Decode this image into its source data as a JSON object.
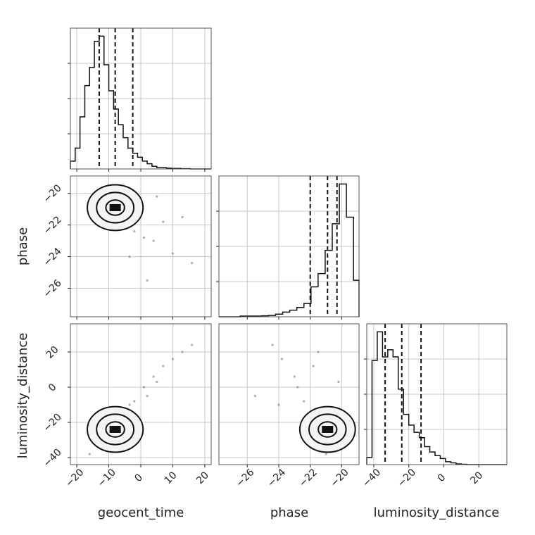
{
  "chart_data": {
    "type": "corner",
    "parameters": [
      {
        "name": "geocent_time",
        "xlim": [
          -22,
          22
        ],
        "ticks": [
          -20,
          -10,
          0,
          10,
          20
        ],
        "quantiles": [
          -13,
          -8,
          -2.5
        ],
        "histogram": {
          "bin_start": -22,
          "bin_width": 1.5,
          "counts": [
            0.3,
            0.8,
            2.0,
            3.2,
            3.9,
            4.9,
            5.1,
            4.0,
            3.0,
            2.3,
            1.7,
            1.2,
            0.8,
            0.6,
            0.45,
            0.3,
            0.2,
            0.1,
            0.05,
            0.05,
            0.03,
            0.02,
            0.02,
            0.01,
            0.01,
            0.0,
            0.0,
            0.0,
            0.0,
            0.0
          ]
        }
      },
      {
        "name": "phase",
        "xlim": [
          -27.8,
          -18.9
        ],
        "ticks": [
          -26,
          -24,
          -22,
          -20
        ],
        "quantiles": [
          -22.0,
          -20.9,
          -20.3
        ],
        "histogram": {
          "bin_start": -27.8,
          "bin_width": 0.45,
          "counts": [
            0.0,
            0.0,
            0.0,
            0.02,
            0.02,
            0.02,
            0.03,
            0.04,
            0.08,
            0.14,
            0.2,
            0.28,
            0.4,
            0.9,
            1.3,
            2.0,
            2.8,
            4.0,
            3.0,
            1.1
          ]
        }
      },
      {
        "name": "luminosity_distance",
        "xlim": [
          -44,
          36
        ],
        "ticks": [
          -40,
          -20,
          0,
          20
        ],
        "quantiles": [
          -33.5,
          -24,
          -13
        ],
        "histogram": {
          "bin_start": -44,
          "bin_width": 3,
          "counts": [
            0.2,
            2.9,
            3.7,
            3.0,
            3.2,
            3.0,
            2.1,
            1.4,
            1.1,
            0.9,
            0.75,
            0.5,
            0.35,
            0.25,
            0.17,
            0.08,
            0.05,
            0.02,
            0.01,
            0.0,
            0.0,
            0.0,
            0.0,
            0.0,
            0.0,
            0.0,
            0.0
          ]
        }
      }
    ],
    "scatter_samples": [
      {
        "geocent_time": -13.0,
        "phase": -20.8,
        "luminosity_distance": -34
      },
      {
        "geocent_time": -11.5,
        "phase": -20.9,
        "luminosity_distance": -32
      },
      {
        "geocent_time": -10.0,
        "phase": -21.2,
        "luminosity_distance": -28
      },
      {
        "geocent_time": -9.0,
        "phase": -20.6,
        "luminosity_distance": -26
      },
      {
        "geocent_time": -7.5,
        "phase": -21.5,
        "luminosity_distance": -22
      },
      {
        "geocent_time": -6.0,
        "phase": -21.0,
        "luminosity_distance": -20
      },
      {
        "geocent_time": -4.0,
        "phase": -22.0,
        "luminosity_distance": -14
      },
      {
        "geocent_time": -2.0,
        "phase": -22.4,
        "luminosity_distance": -8
      },
      {
        "geocent_time": 1.0,
        "phase": -22.8,
        "luminosity_distance": 0
      },
      {
        "geocent_time": 4.0,
        "phase": -23.0,
        "luminosity_distance": 6
      },
      {
        "geocent_time": 7.0,
        "phase": -21.8,
        "luminosity_distance": 12
      },
      {
        "geocent_time": 10.0,
        "phase": -23.8,
        "luminosity_distance": 16
      },
      {
        "geocent_time": 13.0,
        "phase": -21.5,
        "luminosity_distance": 20
      },
      {
        "geocent_time": 16.0,
        "phase": -24.4,
        "luminosity_distance": 24
      },
      {
        "geocent_time": -16.0,
        "phase": -21.0,
        "luminosity_distance": -38
      },
      {
        "geocent_time": -3.5,
        "phase": -24.0,
        "luminosity_distance": -10
      },
      {
        "geocent_time": 2.0,
        "phase": -25.5,
        "luminosity_distance": -5
      },
      {
        "geocent_time": 5.0,
        "phase": -20.2,
        "luminosity_distance": 3
      }
    ],
    "grid": true
  },
  "labels": {
    "geocent_time": "geocent_time",
    "phase": "phase",
    "luminosity_distance": "luminosity_distance"
  }
}
